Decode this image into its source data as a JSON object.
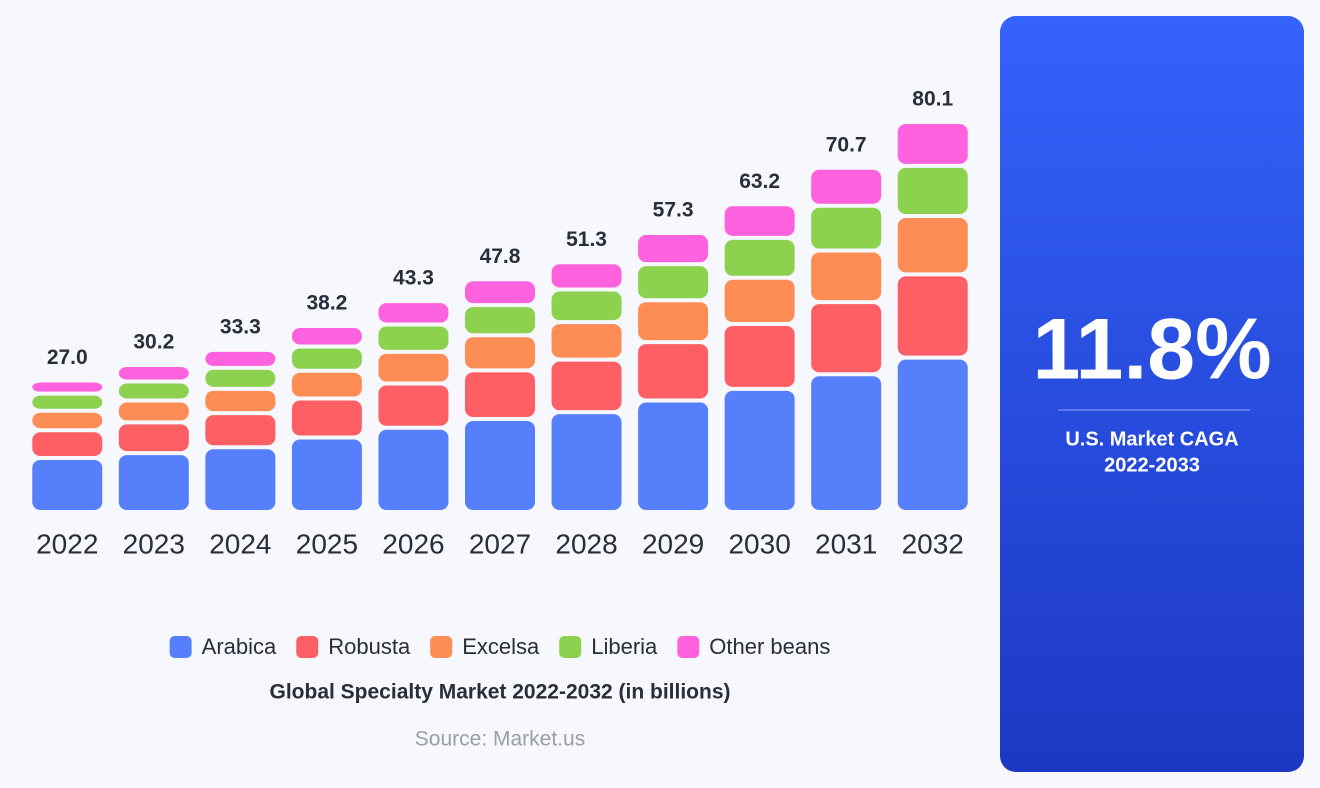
{
  "chart_data": {
    "type": "stacked-bar",
    "title": "Global Specialty Market 2022-2032 (in billions)",
    "source": "Source: Market.us",
    "categories": [
      "2022",
      "2023",
      "2024",
      "2025",
      "2026",
      "2027",
      "2028",
      "2029",
      "2030",
      "2031",
      "2032"
    ],
    "series": [
      {
        "name": "Arabica",
        "color": "#5680fb",
        "values": [
          11.1,
          12.1,
          13.3,
          15.3,
          17.3,
          19.1,
          20.5,
          22.9,
          25.3,
          28.3,
          31.7
        ]
      },
      {
        "name": "Robusta",
        "color": "#fe5f64",
        "values": [
          5.7,
          6.3,
          7.0,
          8.0,
          9.1,
          10.0,
          10.8,
          12.0,
          13.3,
          14.8,
          17.1
        ]
      },
      {
        "name": "Excelsa",
        "color": "#fe8c55",
        "values": [
          4.0,
          4.5,
          5.0,
          5.7,
          6.5,
          7.2,
          7.7,
          8.6,
          9.5,
          10.6,
          12.0
        ]
      },
      {
        "name": "Liberia",
        "color": "#8dd24f",
        "values": [
          3.5,
          3.9,
          4.3,
          5.0,
          5.6,
          6.2,
          6.7,
          7.4,
          8.2,
          9.2,
          10.3
        ]
      },
      {
        "name": "Other beans",
        "color": "#fe62de",
        "values": [
          2.7,
          3.4,
          3.7,
          4.2,
          4.8,
          5.3,
          5.6,
          6.4,
          6.9,
          7.8,
          9.0
        ]
      }
    ],
    "totals": [
      {
        "value": 27,
        "label": "27.0"
      },
      30.2,
      33.3,
      38.2,
      43.3,
      47.8,
      51.3,
      57.3,
      63.2,
      70.7,
      80.1
    ]
  },
  "panel": {
    "value": "11.8%",
    "label": "U.S. Market CAGA",
    "period": "2022-2033"
  }
}
